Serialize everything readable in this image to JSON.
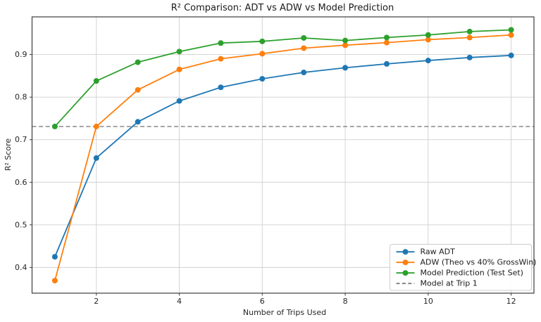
{
  "chart_data": {
    "type": "line",
    "title": "R² Comparison: ADT vs ADW vs Model Prediction",
    "xlabel": "Number of Trips Used",
    "ylabel": "R² Score",
    "x": [
      1,
      2,
      3,
      4,
      5,
      6,
      7,
      8,
      9,
      10,
      11,
      12
    ],
    "series": [
      {
        "name": "Raw ADT",
        "color": "#1f77b4",
        "marker": "circle",
        "values": [
          0.425,
          0.657,
          0.742,
          0.791,
          0.823,
          0.843,
          0.858,
          0.869,
          0.878,
          0.886,
          0.893,
          0.898
        ]
      },
      {
        "name": "ADW (Theo vs 40% GrossWin)",
        "color": "#ff7f0e",
        "marker": "circle",
        "values": [
          0.369,
          0.731,
          0.817,
          0.865,
          0.89,
          0.902,
          0.915,
          0.922,
          0.928,
          0.935,
          0.94,
          0.946
        ]
      },
      {
        "name": "Model Prediction (Test Set)",
        "color": "#2ca02c",
        "marker": "circle",
        "values": [
          0.731,
          0.838,
          0.882,
          0.907,
          0.927,
          0.931,
          0.939,
          0.933,
          0.94,
          0.946,
          0.954,
          0.958
        ]
      }
    ],
    "reference_line": {
      "name": "Model at Trip 1",
      "value": 0.731,
      "color": "#7f7f7f",
      "style": "dashed"
    },
    "xticks": [
      2,
      4,
      6,
      8,
      10,
      12
    ],
    "yticks": [
      0.4,
      0.5,
      0.6,
      0.7,
      0.8,
      0.9
    ],
    "xlim": [
      0.45,
      12.55
    ],
    "ylim": [
      0.3395,
      0.9885
    ],
    "grid": true,
    "grid_color": "#d0d0d0",
    "spine_color": "#3c3c3c",
    "legend_position": "lower right",
    "legend_border_color": "#cccccc",
    "background_color": "#ffffff"
  }
}
